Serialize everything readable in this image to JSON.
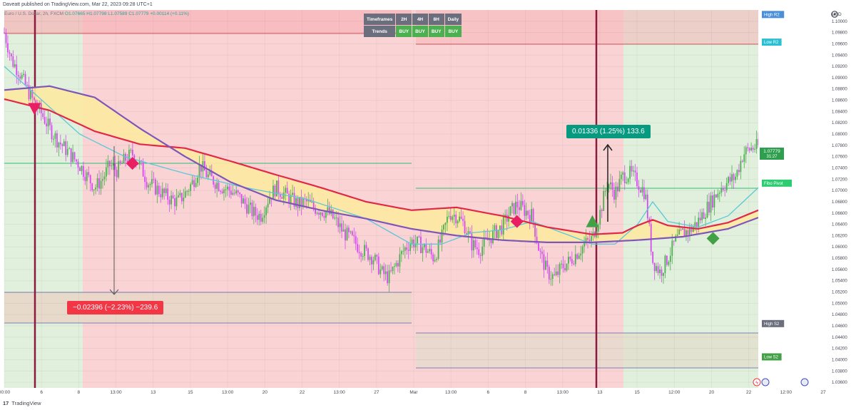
{
  "header": {
    "publisher_line": "Daveatt published on TradingView.com, Mar 22, 2023 09:28 UTC+1"
  },
  "symbol": {
    "name": "Euro / U.S. Dollar, 2h, FXCM",
    "open": "O1.07665",
    "high": "H1.07798",
    "low": "L1.07589",
    "close": "C1.07779",
    "change": "+0.00114 (+0.11%)"
  },
  "timeframes_table": {
    "header_label": "Timeframes",
    "columns": [
      "2H",
      "4H",
      "8H",
      "Daily"
    ],
    "row_label": "Trends",
    "values": [
      "BUY",
      "BUY",
      "BUY",
      "BUY"
    ]
  },
  "measurements": {
    "up": "0.01336 (1.25%) 133.6",
    "down": "−0.02396 (−2.23%) −239.6"
  },
  "footer": {
    "logo": "17",
    "brand": "TradingView"
  },
  "colors": {
    "bearish_zone": "#f9d2d3",
    "bullish_zone": "#dff0d8",
    "candle_up": "#4caf50",
    "candle_down": "#d64bf0",
    "ema_fast": "#54c5d6",
    "ma_red": "#e0284a",
    "ma_purple": "#7e55b8",
    "cloud": "#fbe9a6",
    "signal_sell": "#e91e63",
    "signal_buy": "#43a047"
  },
  "chart_data": {
    "type": "candlestick",
    "instrument": "EUR/USD",
    "interval": "2h",
    "ylim": [
      1.035,
      1.102
    ],
    "y_ticks": [
      1.036,
      1.038,
      1.04,
      1.042,
      1.044,
      1.046,
      1.048,
      1.05,
      1.052,
      1.054,
      1.056,
      1.058,
      1.06,
      1.062,
      1.064,
      1.066,
      1.068,
      1.07,
      1.072,
      1.074,
      1.076,
      1.078,
      1.08,
      1.082,
      1.084,
      1.086,
      1.088,
      1.09,
      1.092,
      1.094,
      1.096,
      1.098,
      1.1
    ],
    "y_tick_labels": [
      "1.03600",
      "1.03800",
      "1.04000",
      "1.04200",
      "1.04400",
      "1.04600",
      "1.04800",
      "1.05000",
      "1.05200",
      "1.05400",
      "1.05600",
      "1.05800",
      "1.06000",
      "1.06200",
      "1.06400",
      "1.06600",
      "1.06800",
      "1.07000",
      "1.07200",
      "1.07400",
      "1.07600",
      "1.07800",
      "1.08000",
      "1.08200",
      "1.08400",
      "1.08600",
      "1.08800",
      "1.09000",
      "1.09200",
      "1.09400",
      "1.09600",
      "1.09800",
      "1.10000"
    ],
    "y_axis_unit": "USD",
    "x_tick_labels": [
      "00:00",
      "6",
      "8",
      "13:00",
      "13",
      "15",
      "13:00",
      "20",
      "22",
      "13:00",
      "27",
      "Mar",
      "13:00",
      "6",
      "8",
      "13:00",
      "13",
      "15",
      "12:00",
      "20",
      "22",
      "12:00",
      "27"
    ],
    "last_price": 1.07779,
    "last_price_label": "1.07779",
    "countdown": "31:27",
    "levels": [
      {
        "name": "High R2",
        "value": 1.1012
      },
      {
        "name": "Low R2",
        "value": 1.0963
      },
      {
        "name": "Fibo Pivot",
        "value": 1.0713
      },
      {
        "name": "High S2",
        "value": 1.0464
      },
      {
        "name": "Low S2",
        "value": 1.0405
      }
    ],
    "close_path": [
      1.098,
      1.093,
      1.091,
      1.088,
      1.0855,
      1.0835,
      1.081,
      1.079,
      1.0775,
      1.076,
      1.0745,
      1.0725,
      1.0705,
      1.072,
      1.0745,
      1.0735,
      1.0755,
      1.0765,
      1.0745,
      1.0715,
      1.0705,
      1.0695,
      1.0685,
      1.068,
      1.0695,
      1.0715,
      1.0745,
      1.0725,
      1.0715,
      1.0705,
      1.07,
      1.069,
      1.0675,
      1.066,
      1.0655,
      1.0685,
      1.0705,
      1.0695,
      1.0685,
      1.0675,
      1.068,
      1.067,
      1.0665,
      1.066,
      1.0645,
      1.0625,
      1.0615,
      1.06,
      1.059,
      1.058,
      1.0555,
      1.0545,
      1.057,
      1.0595,
      1.061,
      1.0605,
      1.0595,
      1.058,
      1.0615,
      1.066,
      1.0655,
      1.064,
      1.0605,
      1.0595,
      1.061,
      1.0625,
      1.0635,
      1.066,
      1.0675,
      1.0665,
      1.0655,
      1.059,
      1.0555,
      1.0545,
      1.0565,
      1.0575,
      1.059,
      1.0605,
      1.0615,
      1.066,
      1.0715,
      1.0695,
      1.0725,
      1.073,
      1.0715,
      1.0695,
      1.0575,
      1.0555,
      1.058,
      1.061,
      1.0625,
      1.063,
      1.0645,
      1.0665,
      1.0685,
      1.0705,
      1.0715,
      1.0725,
      1.0765,
      1.0775,
      1.0778
    ],
    "series": [
      {
        "name": "EMA (cyan)",
        "points": [
          [
            0,
            1.092
          ],
          [
            5,
            1.086
          ],
          [
            10,
            1.08
          ],
          [
            16,
            1.076
          ],
          [
            24,
            1.073
          ],
          [
            32,
            1.0705
          ],
          [
            40,
            1.0685
          ],
          [
            48,
            1.065
          ],
          [
            54,
            1.0605
          ],
          [
            58,
            1.0605
          ],
          [
            62,
            1.0625
          ],
          [
            66,
            1.063
          ],
          [
            70,
            1.0645
          ],
          [
            74,
            1.0625
          ],
          [
            78,
            1.0605
          ],
          [
            81,
            1.0605
          ],
          [
            84,
            1.064
          ],
          [
            86,
            1.068
          ],
          [
            88,
            1.0645
          ],
          [
            92,
            1.0635
          ],
          [
            96,
            1.0655
          ],
          [
            100,
            1.0705
          ]
        ]
      },
      {
        "name": "MA (red)",
        "points": [
          [
            0,
            1.0862
          ],
          [
            6,
            1.0842
          ],
          [
            12,
            1.0805
          ],
          [
            18,
            1.0782
          ],
          [
            24,
            1.0775
          ],
          [
            30,
            1.0752
          ],
          [
            36,
            1.0728
          ],
          [
            42,
            1.0705
          ],
          [
            48,
            1.068
          ],
          [
            54,
            1.0665
          ],
          [
            60,
            1.067
          ],
          [
            66,
            1.0655
          ],
          [
            72,
            1.0635
          ],
          [
            78,
            1.0622
          ],
          [
            82,
            1.0625
          ],
          [
            84,
            1.0638
          ],
          [
            86,
            1.0648
          ],
          [
            88,
            1.0638
          ],
          [
            92,
            1.0632
          ],
          [
            96,
            1.0643
          ],
          [
            100,
            1.0665
          ]
        ]
      },
      {
        "name": "MA (purple)",
        "points": [
          [
            0,
            1.0878
          ],
          [
            6,
            1.0885
          ],
          [
            12,
            1.0865
          ],
          [
            18,
            1.081
          ],
          [
            24,
            1.076
          ],
          [
            30,
            1.0715
          ],
          [
            36,
            1.0683
          ],
          [
            42,
            1.0665
          ],
          [
            48,
            1.065
          ],
          [
            54,
            1.0632
          ],
          [
            60,
            1.062
          ],
          [
            66,
            1.0612
          ],
          [
            72,
            1.0608
          ],
          [
            78,
            1.0608
          ],
          [
            84,
            1.0612
          ],
          [
            90,
            1.0618
          ],
          [
            96,
            1.0632
          ],
          [
            100,
            1.0652
          ]
        ]
      }
    ],
    "signals": [
      {
        "type": "sell-triangle",
        "index": 4,
        "value": 1.0845
      },
      {
        "type": "sell-diamond",
        "index": 17,
        "value": 1.0748
      },
      {
        "type": "sell-diamond",
        "index": 68,
        "value": 1.0645
      },
      {
        "type": "buy-triangle",
        "index": 78,
        "value": 1.0645
      },
      {
        "type": "buy-diamond",
        "index": 94,
        "value": 1.0615
      }
    ]
  }
}
